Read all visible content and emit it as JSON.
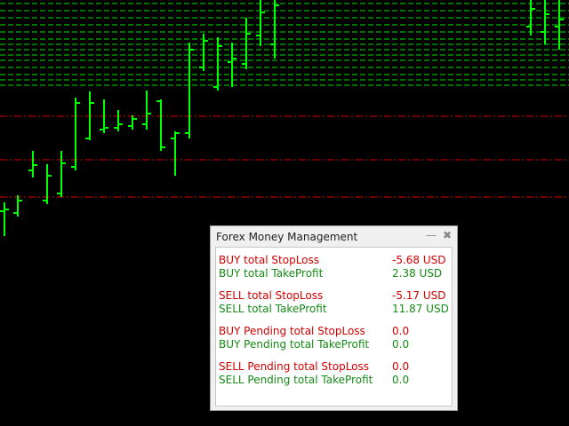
{
  "panel": {
    "title": "Forex Money Management",
    "groups": [
      {
        "rows": [
          {
            "label": "BUY total StopLoss",
            "value": "-5.68 USD"
          },
          {
            "label": "BUY total TakeProfit",
            "value": "2.38 USD"
          }
        ]
      },
      {
        "rows": [
          {
            "label": "SELL total StopLoss",
            "value": "-5.17 USD"
          },
          {
            "label": "SELL total TakeProfit",
            "value": "11.87 USD"
          }
        ]
      },
      {
        "rows": [
          {
            "label": "BUY Pending total StopLoss",
            "value": "0.0"
          },
          {
            "label": "BUY Pending total TakeProfit",
            "value": "0.0"
          }
        ]
      },
      {
        "rows": [
          {
            "label": "SELL Pending total StopLoss",
            "value": "0.0"
          },
          {
            "label": "SELL Pending total TakeProfit",
            "value": "0.0"
          }
        ]
      }
    ]
  }
}
